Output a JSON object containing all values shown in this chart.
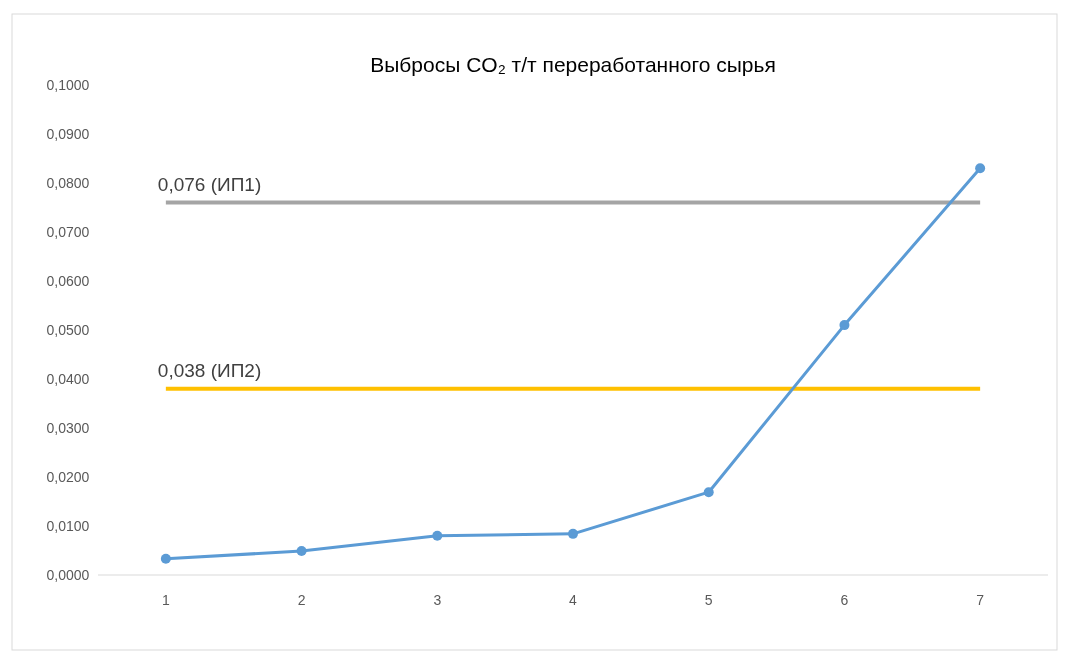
{
  "chart_data": {
    "type": "line",
    "title": "Выбросы CO₂ т/т переработанного сырья",
    "categories": [
      "1",
      "2",
      "3",
      "4",
      "5",
      "6",
      "7"
    ],
    "series": [
      {
        "color": "#5b9bd5",
        "values": [
          0.0033,
          0.0049,
          0.008,
          0.0084,
          0.0169,
          0.051,
          0.083
        ]
      }
    ],
    "ylim": [
      0,
      0.1
    ],
    "yticks": [
      {
        "value": 0,
        "label": "0,0000"
      },
      {
        "value": 0.01,
        "label": "0,0100"
      },
      {
        "value": 0.02,
        "label": "0,0200"
      },
      {
        "value": 0.03,
        "label": "0,0300"
      },
      {
        "value": 0.04,
        "label": "0,0400"
      },
      {
        "value": 0.05,
        "label": "0,0500"
      },
      {
        "value": 0.06,
        "label": "0,0600"
      },
      {
        "value": 0.07,
        "label": "0,0700"
      },
      {
        "value": 0.08,
        "label": "0,0800"
      },
      {
        "value": 0.09,
        "label": "0,0900"
      },
      {
        "value": 0.1,
        "label": "0,1000"
      }
    ],
    "ref_lines": [
      {
        "axis": "y",
        "value": 0.076,
        "label": "0,076 (ИП1)",
        "color": "#a5a5a5"
      },
      {
        "axis": "y",
        "value": 0.038,
        "label": "0,038 (ИП2)",
        "color": "#ffc000"
      }
    ],
    "marker": "circle",
    "grid": false
  }
}
